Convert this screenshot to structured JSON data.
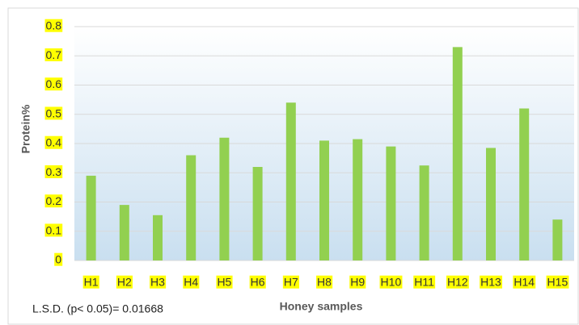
{
  "chart_data": {
    "type": "bar",
    "y_axis_label": "Protein%",
    "x_axis_label": "Honey samples",
    "annotation": "L.S.D. (p< 0.05)= 0.01668",
    "categories": [
      "H1",
      "H2",
      "H3",
      "H4",
      "H5",
      "H6",
      "H7",
      "H8",
      "H9",
      "H10",
      "H11",
      "H12",
      "H13",
      "H14",
      "H15"
    ],
    "values": [
      0.29,
      0.19,
      0.155,
      0.36,
      0.42,
      0.32,
      0.54,
      0.41,
      0.415,
      0.39,
      0.325,
      0.73,
      0.385,
      0.52,
      0.14
    ],
    "color": "#92d050",
    "ylim": [
      0,
      0.8
    ],
    "yticks": [
      0,
      0.1,
      0.2,
      0.3,
      0.4,
      0.5,
      0.6,
      0.7,
      0.8
    ],
    "grid": true,
    "tick_highlight": "#ffff00"
  }
}
